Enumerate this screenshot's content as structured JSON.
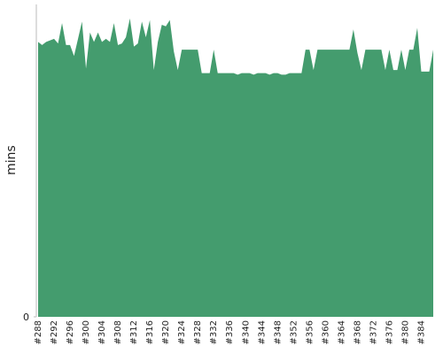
{
  "chart_data": {
    "type": "area",
    "y_label": "mins",
    "color": "#449c6e",
    "categories": [
      "#288",
      null,
      null,
      null,
      "#292",
      null,
      null,
      null,
      "#296",
      null,
      null,
      null,
      "#300",
      null,
      null,
      null,
      "#304",
      null,
      null,
      null,
      "#308",
      null,
      null,
      null,
      "#312",
      null,
      null,
      null,
      "#316",
      null,
      null,
      null,
      "#320",
      null,
      null,
      null,
      "#324",
      null,
      null,
      null,
      "#328",
      null,
      null,
      null,
      "#332",
      null,
      null,
      null,
      "#336",
      null,
      null,
      null,
      "#340",
      null,
      null,
      null,
      "#344",
      null,
      null,
      null,
      "#348",
      null,
      null,
      null,
      "#352",
      null,
      null,
      null,
      "#356",
      null,
      null,
      null,
      "#360",
      null,
      null,
      null,
      "#364",
      null,
      null,
      null,
      "#368",
      null,
      null,
      null,
      "#372",
      null,
      null,
      null,
      "#376",
      null,
      null,
      null,
      "#380",
      null,
      null,
      null,
      "#384",
      null,
      null,
      null
    ],
    "values": [
      88,
      87,
      88,
      88.5,
      89,
      87.5,
      94,
      87,
      87,
      83.5,
      89,
      94.5,
      79.5,
      91,
      88,
      91,
      88,
      89,
      88,
      94,
      87,
      87.5,
      89.5,
      95.5,
      86.5,
      87.5,
      94.5,
      89.5,
      95,
      79,
      88,
      93.5,
      93,
      95,
      85,
      79,
      85.5,
      85.5,
      85.5,
      85.5,
      85.5,
      78,
      78,
      78,
      85.5,
      78,
      78,
      78,
      78,
      78,
      77.5,
      78,
      78,
      78,
      77.5,
      78,
      78,
      78,
      77.5,
      78,
      78,
      77.5,
      77.5,
      78,
      78,
      78,
      78,
      85.5,
      85.5,
      79,
      85.5,
      85.5,
      85.5,
      85.5,
      85.5,
      85.5,
      85.5,
      85.5,
      85.5,
      92,
      84.5,
      79,
      85.5,
      85.5,
      85.5,
      85.5,
      85.5,
      79,
      85.5,
      79,
      79,
      85.5,
      79,
      85.5,
      85.5,
      92.5,
      78.5,
      78.5,
      78.5,
      85.5
    ],
    "ylim": [
      0,
      100
    ],
    "yticks": [
      0
    ]
  }
}
